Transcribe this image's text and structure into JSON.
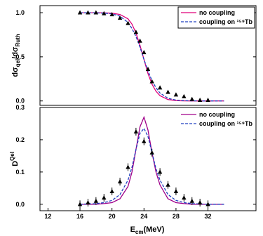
{
  "chart_data": [
    {
      "type": "line",
      "ylabel": {
        "a": "dσ",
        "b": "qel",
        "c": "/dσ",
        "d": "Ruth"
      },
      "xlim": [
        11,
        38
      ],
      "ylim": [
        -0.05,
        1.08
      ],
      "yticks": [
        {
          "value": 1.0,
          "label": "1.0"
        },
        {
          "value": 0.5,
          "label": "0.5"
        },
        {
          "value": 0.0,
          "label": "0.0"
        }
      ],
      "legend": "upper right",
      "legend_box": true,
      "series": [
        {
          "name": "no coupling",
          "color": "#e0007a",
          "dash": false,
          "x": [
            16,
            18,
            19,
            20,
            21,
            22,
            22.5,
            23,
            23.5,
            24,
            24.5,
            25,
            25.5,
            26,
            27,
            28,
            29,
            30,
            32,
            34
          ],
          "values": [
            1.0,
            1.0,
            0.998,
            0.994,
            0.98,
            0.93,
            0.87,
            0.77,
            0.63,
            0.47,
            0.31,
            0.19,
            0.11,
            0.06,
            0.016,
            0.004,
            0.001,
            0,
            0,
            0
          ]
        },
        {
          "name": "coupling on ¹⁵⁹Tb",
          "color": "#2040c0",
          "dash": true,
          "x": [
            16,
            18,
            19,
            20,
            21,
            22,
            22.5,
            23,
            23.5,
            24,
            24.5,
            25,
            25.5,
            26,
            27,
            28,
            29,
            30,
            32,
            34
          ],
          "values": [
            1.0,
            0.998,
            0.995,
            0.987,
            0.96,
            0.89,
            0.82,
            0.73,
            0.61,
            0.47,
            0.34,
            0.23,
            0.15,
            0.09,
            0.03,
            0.01,
            0.004,
            0.001,
            0,
            0
          ]
        }
      ],
      "points": {
        "x": [
          16,
          17,
          18,
          19,
          20,
          21,
          22,
          23,
          23.5,
          24,
          24.5,
          25,
          26,
          27,
          28,
          29,
          30,
          31,
          32
        ],
        "values": [
          1.0,
          1.0,
          1.0,
          0.99,
          0.98,
          0.94,
          0.88,
          0.78,
          0.68,
          0.55,
          0.36,
          0.22,
          0.15,
          0.1,
          0.07,
          0.05,
          0.02,
          0.01,
          0.01
        ]
      }
    },
    {
      "type": "line",
      "ylabel": {
        "a": "D",
        "b": "Qel"
      },
      "xlabel": {
        "a": "E",
        "b": "cm",
        "c": "(MeV)"
      },
      "xlim": [
        11,
        38
      ],
      "ylim": [
        -0.02,
        0.3
      ],
      "xticks": [
        12,
        16,
        20,
        24,
        28,
        32
      ],
      "yticks": [
        {
          "value": 0.3,
          "label": "0.3"
        },
        {
          "value": 0.2,
          "label": "0.2"
        },
        {
          "value": 0.1,
          "label": "0.1"
        },
        {
          "value": 0.0,
          "label": "0.0"
        }
      ],
      "legend": "upper right",
      "legend_box": false,
      "series": [
        {
          "name": "no coupling",
          "color": "#a0008a",
          "dash": false,
          "x": [
            16,
            18,
            19,
            20,
            21,
            22,
            22.5,
            23,
            23.5,
            24,
            24.5,
            25,
            25.5,
            26,
            27,
            28,
            29,
            30,
            32,
            34
          ],
          "values": [
            0,
            0,
            0.002,
            0.005,
            0.017,
            0.055,
            0.1,
            0.17,
            0.24,
            0.27,
            0.23,
            0.16,
            0.1,
            0.06,
            0.017,
            0.005,
            0.002,
            0,
            0,
            0
          ]
        },
        {
          "name": "coupling on ¹⁵⁹Tb",
          "color": "#2040c0",
          "dash": true,
          "x": [
            16,
            18,
            19,
            20,
            21,
            22,
            22.5,
            23,
            23.5,
            24,
            24.5,
            25,
            25.5,
            26,
            27,
            28,
            29,
            30,
            32,
            34
          ],
          "values": [
            0,
            0.002,
            0.005,
            0.012,
            0.03,
            0.075,
            0.115,
            0.17,
            0.22,
            0.235,
            0.21,
            0.16,
            0.11,
            0.075,
            0.03,
            0.012,
            0.005,
            0.002,
            0,
            0
          ]
        }
      ],
      "points": {
        "x": [
          16,
          17,
          18,
          19,
          20,
          21,
          22,
          23,
          24,
          25,
          26,
          27,
          28,
          29,
          30,
          31,
          32
        ],
        "values": [
          0.0,
          0.005,
          0.01,
          0.02,
          0.04,
          0.07,
          0.115,
          0.225,
          0.195,
          0.16,
          0.1,
          0.06,
          0.04,
          0.02,
          0.01,
          0.005,
          0.0
        ],
        "errors": [
          0.012,
          0.012,
          0.012,
          0.012,
          0.012,
          0.012,
          0.012,
          0.012,
          0.012,
          0.012,
          0.012,
          0.012,
          0.012,
          0.012,
          0.012,
          0.012,
          0.012
        ]
      }
    }
  ]
}
